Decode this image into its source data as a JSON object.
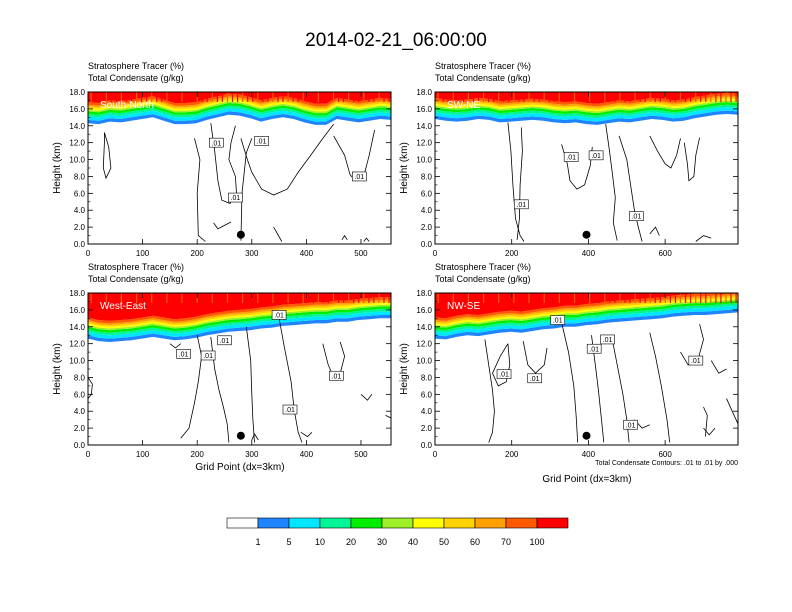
{
  "title": "2014-02-21_06:00:00",
  "chart_data": [
    {
      "type": "contour",
      "label": "South-North",
      "left_title_1": "Stratosphere Tracer   (%)",
      "left_title_2": "Total Condensate   (g/kg)",
      "ylabel": "Height (km)",
      "xlabel": "",
      "xlim": [
        0,
        555
      ],
      "ylim": [
        0,
        18
      ],
      "xticks": [
        0,
        100,
        200,
        300,
        400,
        500
      ],
      "yticks": [
        "0.0",
        "2.0",
        "4.0",
        "6.0",
        "8.0",
        "10.0",
        "12.0",
        "14.0",
        "16.0",
        "18.0"
      ],
      "marker": {
        "x": 280,
        "y": 1.1
      },
      "contour_labels": [
        {
          "text": ".01",
          "x": 235,
          "y": 12.0
        },
        {
          "text": ".01",
          "x": 318,
          "y": 12.2
        },
        {
          "text": ".01",
          "x": 270,
          "y": 5.5
        },
        {
          "text": ".01",
          "x": 497,
          "y": 8.0
        }
      ],
      "tracer_base_km": [
        14.3,
        14.2,
        14.5,
        14.4,
        14.6,
        14.8,
        15.0,
        14.6,
        14.2,
        14.2,
        14.3,
        14.7,
        15.0,
        15.3,
        15.2,
        14.9,
        14.5,
        14.8,
        15.0,
        14.8,
        14.4,
        14.1,
        14.1,
        14.8,
        14.6,
        14.4,
        14.6,
        14.8,
        14.7
      ]
    },
    {
      "type": "contour",
      "label": "SW-NE",
      "left_title_1": "Stratosphere Tracer   (%)",
      "left_title_2": "Total Condensate   (g/kg)",
      "ylabel": "Height (km)",
      "xlabel": "",
      "xlim": [
        0,
        790
      ],
      "ylim": [
        0,
        18
      ],
      "xticks": [
        0,
        200,
        400,
        600
      ],
      "yticks": [
        "0.0",
        "2.0",
        "4.0",
        "6.0",
        "8.0",
        "10.0",
        "12.0",
        "14.0",
        "16.0",
        "18.0"
      ],
      "marker": {
        "x": 395,
        "y": 1.1
      },
      "contour_labels": [
        {
          "text": ".01",
          "x": 355,
          "y": 10.3
        },
        {
          "text": ".01",
          "x": 420,
          "y": 10.5
        },
        {
          "text": ".01",
          "x": 225,
          "y": 4.7
        },
        {
          "text": ".01",
          "x": 525,
          "y": 3.3
        }
      ],
      "tracer_base_km": [
        14.8,
        14.6,
        14.5,
        14.6,
        14.8,
        14.7,
        14.4,
        14.5,
        14.6,
        14.7,
        14.6,
        14.4,
        14.3,
        14.4,
        14.2,
        14.1,
        14.3,
        14.5,
        14.4,
        14.6,
        14.8,
        14.7,
        14.5,
        14.6,
        14.9,
        15.1,
        15.3,
        15.4,
        15.3
      ]
    },
    {
      "type": "contour",
      "label": "West-East",
      "left_title_1": "Stratosphere Tracer   (%)",
      "left_title_2": "Total Condensate   (g/kg)",
      "ylabel": "Height (km)",
      "xlabel": "Grid Point (dx=3km)",
      "xlim": [
        0,
        555
      ],
      "ylim": [
        0,
        18
      ],
      "xticks": [
        0,
        100,
        200,
        300,
        400,
        500
      ],
      "yticks": [
        "0.0",
        "2.0",
        "4.0",
        "6.0",
        "8.0",
        "10.0",
        "12.0",
        "14.0",
        "16.0",
        "18.0"
      ],
      "marker": {
        "x": 280,
        "y": 1.1
      },
      "contour_labels": [
        {
          "text": ".01",
          "x": 350,
          "y": 15.4
        },
        {
          "text": ".01",
          "x": 250,
          "y": 12.4
        },
        {
          "text": ".01",
          "x": 175,
          "y": 10.8
        },
        {
          "text": ".01",
          "x": 220,
          "y": 10.6
        },
        {
          "text": ".01",
          "x": 455,
          "y": 8.2
        },
        {
          "text": ".01",
          "x": 370,
          "y": 4.2
        }
      ],
      "tracer_base_km": [
        12.6,
        12.3,
        12.2,
        12.3,
        12.4,
        12.6,
        12.8,
        12.6,
        12.4,
        12.5,
        12.7,
        13.0,
        13.2,
        13.4,
        13.5,
        13.6,
        13.8,
        13.9,
        14.1,
        14.2,
        14.3,
        14.4,
        14.4,
        14.6,
        14.6,
        14.8,
        14.9,
        15.0,
        15.0
      ]
    },
    {
      "type": "contour",
      "label": "NW-SE",
      "left_title_1": "Stratosphere Tracer   (%)",
      "left_title_2": "Total Condensate   (g/kg)",
      "ylabel": "Height (km)",
      "xlabel": "Grid Point (dx=3km)",
      "xlim": [
        0,
        790
      ],
      "ylim": [
        0,
        18
      ],
      "xticks": [
        0,
        200,
        400,
        600
      ],
      "yticks": [
        "0.0",
        "2.0",
        "4.0",
        "6.0",
        "8.0",
        "10.0",
        "12.0",
        "14.0",
        "16.0",
        "18.0"
      ],
      "marker": {
        "x": 395,
        "y": 1.1
      },
      "contour_labels": [
        {
          "text": ".01",
          "x": 320,
          "y": 14.8
        },
        {
          "text": ".01",
          "x": 450,
          "y": 12.5
        },
        {
          "text": ".01",
          "x": 415,
          "y": 11.4
        },
        {
          "text": ".01",
          "x": 180,
          "y": 8.4
        },
        {
          "text": ".01",
          "x": 260,
          "y": 7.9
        },
        {
          "text": ".01",
          "x": 680,
          "y": 10.0
        },
        {
          "text": ".01",
          "x": 510,
          "y": 2.4
        }
      ],
      "tracer_base_km": [
        12.6,
        12.5,
        12.8,
        13.0,
        12.9,
        13.1,
        13.3,
        13.4,
        13.3,
        13.5,
        13.7,
        13.8,
        14.0,
        14.0,
        14.2,
        14.3,
        14.5,
        14.6,
        14.7,
        14.8,
        14.9,
        15.0,
        15.2,
        15.3,
        15.4,
        15.4,
        15.5,
        15.6,
        15.7
      ]
    }
  ],
  "contour_note": "Total Condensate Contours: .01 to .01 by .000",
  "colorbar": {
    "colors": [
      "#ffffff",
      "#1e84ff",
      "#00e6ff",
      "#00f596",
      "#00ee00",
      "#9ff028",
      "#ffff00",
      "#ffd200",
      "#ffa000",
      "#ff5a00",
      "#ff0000"
    ],
    "labels": [
      "1",
      "5",
      "10",
      "20",
      "30",
      "40",
      "50",
      "60",
      "70",
      "100"
    ]
  }
}
